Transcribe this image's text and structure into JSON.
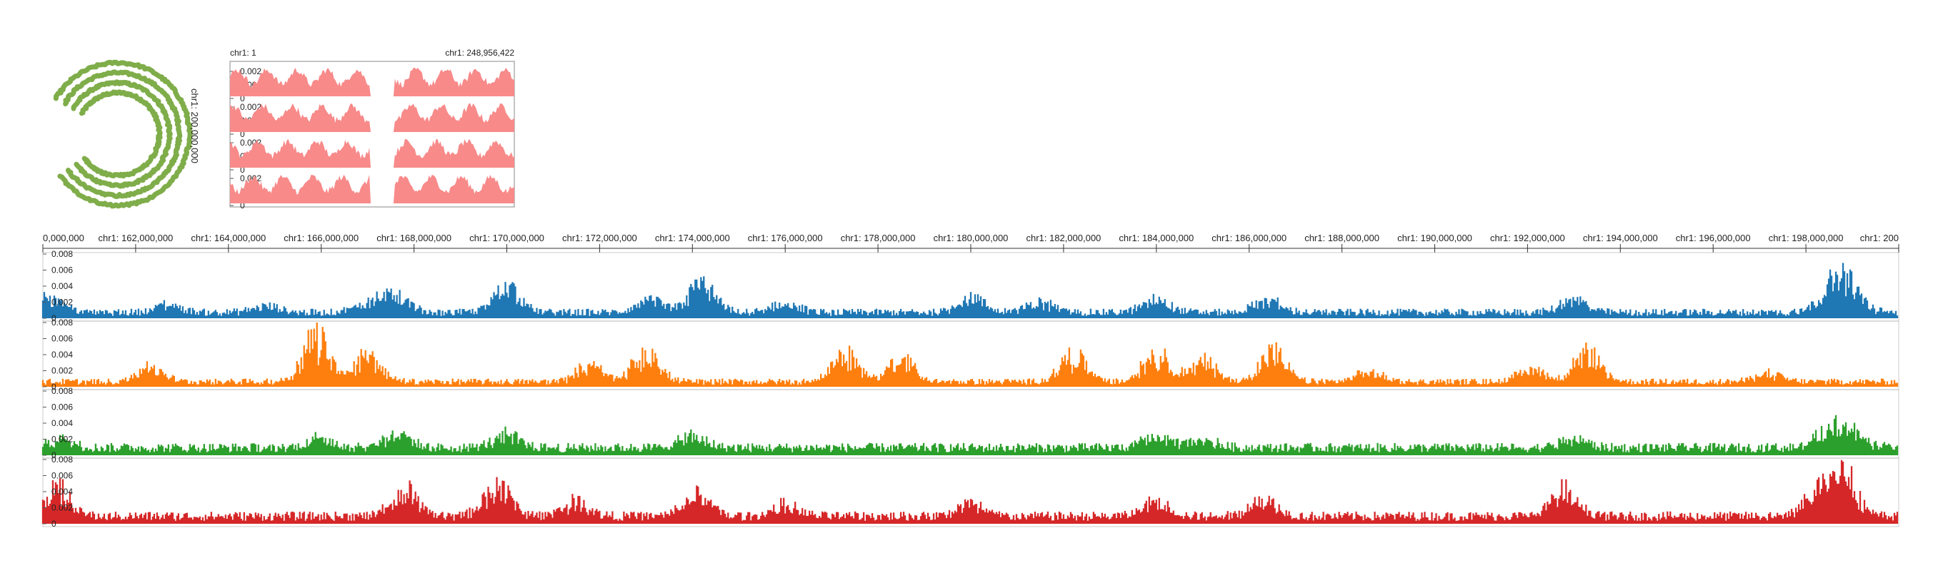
{
  "colors": {
    "ring": "#7fad4a",
    "overview": "#f88a8a",
    "track1": "#1f77b4",
    "track2": "#ff7f0e",
    "track3": "#2ca02c",
    "track4": "#d62728",
    "axis": "#333333"
  },
  "circle_view": {
    "ring_count": 4,
    "label": "chr1: 200,000,000"
  },
  "overview": {
    "start_label": "chr1: 1",
    "end_label": "chr1: 248,956,422"
  },
  "chart_data": {
    "type": "area",
    "genomic_axis": {
      "chromosome": "chr1",
      "range": [
        160000000,
        200000000
      ],
      "tick_labels": [
        "0,000,000",
        "chr1: 162,000,000",
        "chr1: 164,000,000",
        "chr1: 166,000,000",
        "chr1: 168,000,000",
        "chr1: 170,000,000",
        "chr1: 172,000,000",
        "chr1: 174,000,000",
        "chr1: 176,000,000",
        "chr1: 178,000,000",
        "chr1: 180,000,000",
        "chr1: 182,000,000",
        "chr1: 184,000,000",
        "chr1: 186,000,000",
        "chr1: 188,000,000",
        "chr1: 190,000,000",
        "chr1: 192,000,000",
        "chr1: 194,000,000",
        "chr1: 196,000,000",
        "chr1: 198,000,000",
        "chr1: 200"
      ]
    },
    "overview_tracks": {
      "ylim": [
        0,
        0.002
      ],
      "y_tick_labels": [
        "0.002",
        "0.001",
        "0"
      ],
      "count": 4,
      "gap_fraction_range": [
        0.49,
        0.58
      ]
    },
    "tracks": [
      {
        "color_key": "track1",
        "ylim": [
          0,
          0.008
        ],
        "y_tick_labels": [
          "0.008",
          "0.006",
          "0.004",
          "0.002",
          "0"
        ],
        "baseline": 0.0007,
        "peaks": [
          [
            160200000,
            0.003
          ],
          [
            162700000,
            0.0018
          ],
          [
            164800000,
            0.0016
          ],
          [
            167000000,
            0.0022
          ],
          [
            167600000,
            0.0032
          ],
          [
            170000000,
            0.0045
          ],
          [
            173100000,
            0.0025
          ],
          [
            174200000,
            0.0048
          ],
          [
            176000000,
            0.002
          ],
          [
            180000000,
            0.0028
          ],
          [
            181500000,
            0.0022
          ],
          [
            184000000,
            0.0028
          ],
          [
            186400000,
            0.0025
          ],
          [
            193000000,
            0.0025
          ],
          [
            198500000,
            0.0035
          ],
          [
            198900000,
            0.0048
          ]
        ]
      },
      {
        "color_key": "track2",
        "ylim": [
          0,
          0.008
        ],
        "y_tick_labels": [
          "0.008",
          "0.006",
          "0.004",
          "0.002",
          "0"
        ],
        "baseline": 0.0006,
        "peaks": [
          [
            162300000,
            0.0027
          ],
          [
            165900000,
            0.0075
          ],
          [
            167000000,
            0.0045
          ],
          [
            171800000,
            0.003
          ],
          [
            173000000,
            0.0048
          ],
          [
            177300000,
            0.0045
          ],
          [
            178500000,
            0.0038
          ],
          [
            182200000,
            0.0045
          ],
          [
            184000000,
            0.0045
          ],
          [
            185000000,
            0.0035
          ],
          [
            186500000,
            0.0048
          ],
          [
            188600000,
            0.002
          ],
          [
            192100000,
            0.0025
          ],
          [
            193300000,
            0.0048
          ],
          [
            197200000,
            0.0018
          ]
        ]
      },
      {
        "color_key": "track3",
        "ylim": [
          0,
          0.008
        ],
        "y_tick_labels": [
          "0.008",
          "0.006",
          "0.004",
          "0.002",
          "0"
        ],
        "baseline": 0.0009,
        "peaks": [
          [
            160400000,
            0.0022
          ],
          [
            166000000,
            0.0025
          ],
          [
            167600000,
            0.003
          ],
          [
            170000000,
            0.0028
          ],
          [
            174000000,
            0.0025
          ],
          [
            184000000,
            0.0025
          ],
          [
            185000000,
            0.0022
          ],
          [
            193000000,
            0.0022
          ],
          [
            198500000,
            0.0035
          ],
          [
            199000000,
            0.0032
          ]
        ]
      },
      {
        "color_key": "track4",
        "ylim": [
          0,
          0.008
        ],
        "y_tick_labels": [
          "0.008",
          "0.006",
          "0.004",
          "0.002",
          "0"
        ],
        "baseline": 0.0009,
        "peaks": [
          [
            160300000,
            0.0048
          ],
          [
            167800000,
            0.0045
          ],
          [
            169800000,
            0.0055
          ],
          [
            171500000,
            0.003
          ],
          [
            174100000,
            0.004
          ],
          [
            176000000,
            0.0025
          ],
          [
            180000000,
            0.0028
          ],
          [
            184000000,
            0.003
          ],
          [
            186300000,
            0.0035
          ],
          [
            192800000,
            0.0045
          ],
          [
            198300000,
            0.0048
          ],
          [
            198800000,
            0.0068
          ]
        ]
      }
    ]
  }
}
